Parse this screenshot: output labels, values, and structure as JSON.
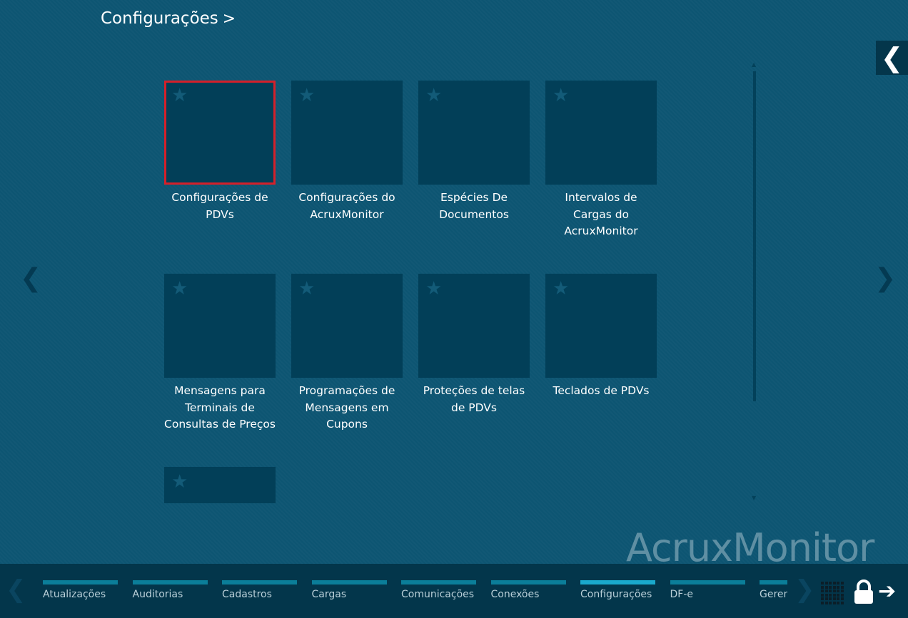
{
  "header": {
    "title": "Configurações",
    "chevron": ">",
    "back_icon": "chevron-left-icon"
  },
  "nav": {
    "prev": "❮",
    "next": "❯"
  },
  "items": [
    {
      "label": "Configurações de PDVs",
      "selected": true
    },
    {
      "label": "Configurações do AcruxMonitor"
    },
    {
      "label": "Espécies De Documentos"
    },
    {
      "label": "Intervalos de Cargas do AcruxMonitor"
    },
    {
      "label": "Mensagens para Terminais de Consultas de Preços"
    },
    {
      "label": "Programações de Mensagens em Cupons"
    },
    {
      "label": "Proteções de telas de PDVs"
    },
    {
      "label": "Teclados de PDVs"
    },
    {
      "label": ""
    }
  ],
  "brand": "AcruxMonitor",
  "bottom_tabs": [
    {
      "label": "Atualizações"
    },
    {
      "label": "Auditorias"
    },
    {
      "label": "Cadastros"
    },
    {
      "label": "Cargas"
    },
    {
      "label": "Comunicações"
    },
    {
      "label": "Conexões"
    },
    {
      "label": "Configurações",
      "active": true
    },
    {
      "label": "DF-e"
    },
    {
      "label": "Gerenciamento"
    }
  ],
  "colors": {
    "background": "#0d5572",
    "tile": "#023f58",
    "selected_border": "#d5202a",
    "active_tab": "#1aa9cc",
    "tab": "#0b7e99"
  }
}
